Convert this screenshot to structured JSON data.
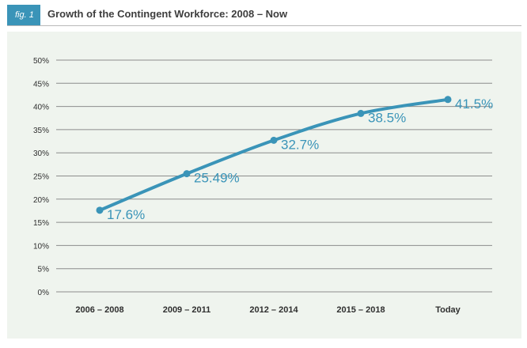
{
  "header": {
    "fig_label": "fig. 1",
    "title": "Growth of the Contingent Workforce: 2008 – Now"
  },
  "colors": {
    "accent": "#3a94b8",
    "panel_background": "#eff4ee",
    "gridline": "#8c8c8c",
    "text": "#2f2f2f"
  },
  "chart_data": {
    "type": "line",
    "title": "Growth of the Contingent Workforce: 2008 – Now",
    "xlabel": "",
    "ylabel": "",
    "categories": [
      "2006 – 2008",
      "2009 – 2011",
      "2012 – 2014",
      "2015 – 2018",
      "Today"
    ],
    "series": [
      {
        "values": [
          17.6,
          25.49,
          32.7,
          38.5,
          41.5
        ],
        "labels": [
          "17.6%",
          "25.49%",
          "32.7%",
          "38.5%",
          "41.5%"
        ]
      }
    ],
    "ylim": [
      0,
      50
    ],
    "yticks": [
      0,
      5,
      10,
      15,
      20,
      25,
      30,
      35,
      40,
      45,
      50
    ],
    "ytick_labels": [
      "0%",
      "5%",
      "10%",
      "15%",
      "20%",
      "25%",
      "30%",
      "35%",
      "40%",
      "45%",
      "50%"
    ],
    "grid": true,
    "legend": "none"
  }
}
